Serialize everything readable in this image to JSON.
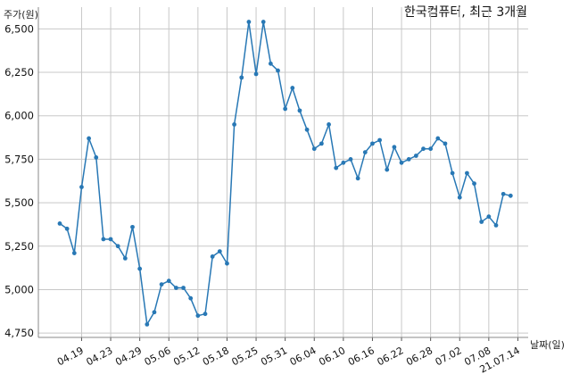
{
  "chart_data": {
    "type": "line",
    "title": "한국컴퓨터, 최근 3개월",
    "ylabel": "주가(원)",
    "xlabel": "날짜(일)",
    "ylim": [
      4725,
      6625
    ],
    "yticks": [
      4750,
      5000,
      5250,
      5500,
      5750,
      6000,
      6250,
      6500
    ],
    "ytick_labels": [
      "4,750",
      "5,000",
      "5,250",
      "5,500",
      "5,750",
      "6,000",
      "6,250",
      "6,500"
    ],
    "xtick_labels": [
      {
        "index": 3,
        "label": "04.19"
      },
      {
        "index": 7,
        "label": "04.23"
      },
      {
        "index": 11,
        "label": "04.29"
      },
      {
        "index": 15,
        "label": "05.06"
      },
      {
        "index": 19,
        "label": "05.12"
      },
      {
        "index": 23,
        "label": "05.18"
      },
      {
        "index": 27,
        "label": "05.25"
      },
      {
        "index": 31,
        "label": "05.31"
      },
      {
        "index": 35,
        "label": "06.04"
      },
      {
        "index": 39,
        "label": "06.10"
      },
      {
        "index": 43,
        "label": "06.16"
      },
      {
        "index": 47,
        "label": "06.22"
      },
      {
        "index": 51,
        "label": "06.28"
      },
      {
        "index": 55,
        "label": "07.02"
      },
      {
        "index": 59,
        "label": "07.08"
      },
      {
        "index": 63,
        "label": "21.07.14"
      }
    ],
    "grid": true,
    "color": "#2878b5",
    "series": [
      {
        "values": [
          5380,
          5350,
          5210,
          5590,
          5870,
          5760,
          5290,
          5290,
          5250,
          5180,
          5360,
          5120,
          4800,
          4870,
          5030,
          5050,
          5010,
          5010,
          4950,
          4850,
          4860,
          5190,
          5220,
          5150,
          5950,
          6220,
          6540,
          6240,
          6540,
          6300,
          6260,
          6040,
          6160,
          6030,
          5920,
          5810,
          5840,
          5950,
          5700,
          5730,
          5750,
          5640,
          5790,
          5840,
          5860,
          5690,
          5820,
          5730,
          5750,
          5770,
          5810,
          5810,
          5870,
          5840,
          5670,
          5530,
          5670,
          5610,
          5390,
          5420,
          5370,
          5550,
          5540
        ]
      }
    ]
  }
}
